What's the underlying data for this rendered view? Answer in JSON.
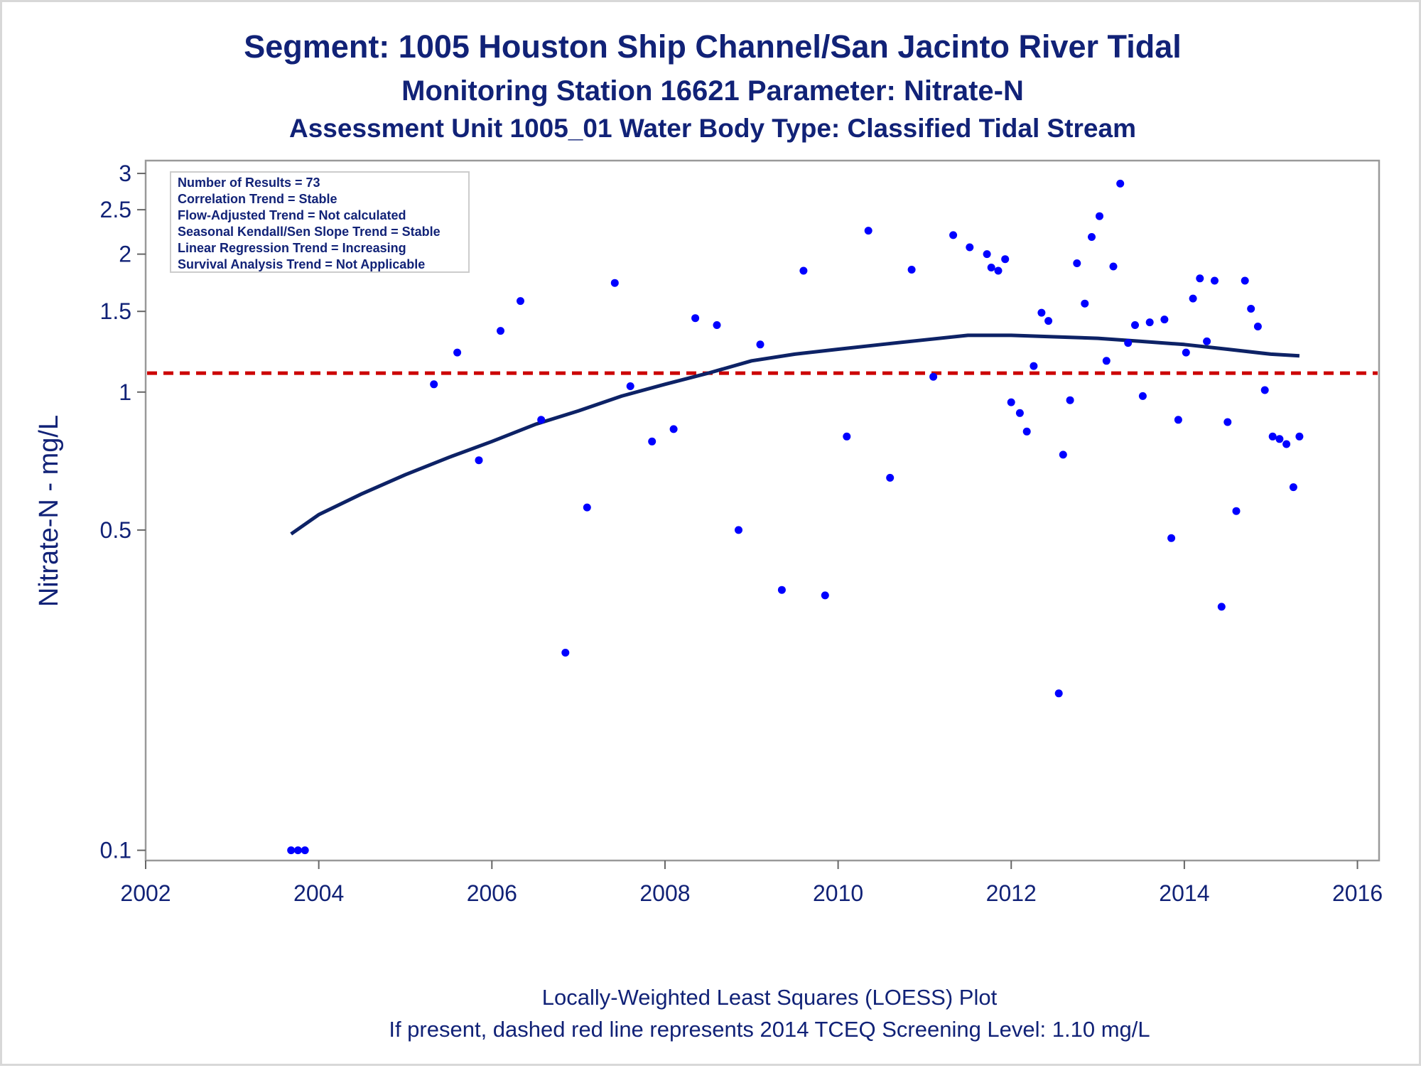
{
  "chart_data": {
    "type": "scatter",
    "title": "Segment: 1005  Houston Ship Channel/San Jacinto River Tidal",
    "subtitle": "Monitoring Station 16621 Parameter: Nitrate-N",
    "subtitle2": "Assessment Unit 1005_01   Water Body Type: Classified Tidal Stream",
    "ylabel": "Nitrate-N - mg/L",
    "xlabel": "",
    "yscale": "log",
    "ylim": [
      0.095,
      3.2
    ],
    "xlim": [
      2002,
      2016.25
    ],
    "x_ticks": [
      2002,
      2004,
      2006,
      2008,
      2010,
      2012,
      2014,
      2016
    ],
    "x_tick_labels": [
      "2002",
      "2004",
      "2006",
      "2008",
      "2010",
      "2012",
      "2014",
      "2016"
    ],
    "y_ticks": [
      0.1,
      0.5,
      1,
      1.5,
      2,
      2.5,
      3
    ],
    "y_tick_labels": [
      "0.1",
      "0.5",
      "1",
      "1.5",
      "2",
      "2.5",
      "3"
    ],
    "grid": false,
    "legend_placement": "top-left",
    "stats_box": [
      "Number of Results = 73",
      "Correlation Trend = Stable",
      "Flow-Adjusted Trend = Not calculated",
      "Seasonal Kendall/Sen Slope Trend = Stable",
      "Linear Regression Trend = Increasing",
      "Survival Analysis Trend = Not Applicable"
    ],
    "screening_level": 1.1,
    "points": [
      [
        2003.68,
        0.1
      ],
      [
        2003.76,
        0.1
      ],
      [
        2003.84,
        0.1
      ],
      [
        2005.33,
        1.04
      ],
      [
        2005.6,
        1.22
      ],
      [
        2005.85,
        0.71
      ],
      [
        2006.1,
        1.36
      ],
      [
        2006.33,
        1.58
      ],
      [
        2006.57,
        0.87
      ],
      [
        2006.85,
        0.27
      ],
      [
        2007.1,
        0.56
      ],
      [
        2007.42,
        1.73
      ],
      [
        2007.6,
        1.03
      ],
      [
        2007.85,
        0.78
      ],
      [
        2008.1,
        0.83
      ],
      [
        2008.35,
        1.45
      ],
      [
        2008.6,
        1.4
      ],
      [
        2008.85,
        0.5
      ],
      [
        2009.1,
        1.27
      ],
      [
        2009.35,
        0.37
      ],
      [
        2009.6,
        1.84
      ],
      [
        2009.85,
        0.36
      ],
      [
        2010.1,
        0.8
      ],
      [
        2010.35,
        2.25
      ],
      [
        2010.6,
        0.65
      ],
      [
        2010.85,
        1.85
      ],
      [
        2011.1,
        1.08
      ],
      [
        2011.33,
        2.2
      ],
      [
        2011.52,
        2.07
      ],
      [
        2011.72,
        2.0
      ],
      [
        2011.77,
        1.87
      ],
      [
        2011.85,
        1.84
      ],
      [
        2011.93,
        1.95
      ],
      [
        2012.0,
        0.95
      ],
      [
        2012.1,
        0.9
      ],
      [
        2012.18,
        0.82
      ],
      [
        2012.26,
        1.14
      ],
      [
        2012.35,
        1.49
      ],
      [
        2012.43,
        1.43
      ],
      [
        2012.55,
        0.22
      ],
      [
        2012.6,
        0.73
      ],
      [
        2012.68,
        0.96
      ],
      [
        2012.76,
        1.91
      ],
      [
        2012.85,
        1.56
      ],
      [
        2012.93,
        2.18
      ],
      [
        2013.02,
        2.42
      ],
      [
        2013.1,
        1.17
      ],
      [
        2013.18,
        1.88
      ],
      [
        2013.26,
        2.85
      ],
      [
        2013.35,
        1.28
      ],
      [
        2013.43,
        1.4
      ],
      [
        2013.52,
        0.98
      ],
      [
        2013.6,
        1.42
      ],
      [
        2013.77,
        1.44
      ],
      [
        2013.85,
        0.48
      ],
      [
        2013.93,
        0.87
      ],
      [
        2014.02,
        1.22
      ],
      [
        2014.1,
        1.6
      ],
      [
        2014.18,
        1.77
      ],
      [
        2014.26,
        1.29
      ],
      [
        2014.35,
        1.75
      ],
      [
        2014.43,
        0.34
      ],
      [
        2014.5,
        0.86
      ],
      [
        2014.6,
        0.55
      ],
      [
        2014.7,
        1.75
      ],
      [
        2014.77,
        1.52
      ],
      [
        2014.85,
        1.39
      ],
      [
        2014.93,
        1.01
      ],
      [
        2015.02,
        0.8
      ],
      [
        2015.1,
        0.79
      ],
      [
        2015.18,
        0.77
      ],
      [
        2015.26,
        0.62
      ],
      [
        2015.33,
        0.8
      ]
    ],
    "loess_curve": [
      [
        2003.68,
        0.49
      ],
      [
        2004.0,
        0.54
      ],
      [
        2004.5,
        0.6
      ],
      [
        2005.0,
        0.66
      ],
      [
        2005.5,
        0.72
      ],
      [
        2006.0,
        0.78
      ],
      [
        2006.5,
        0.85
      ],
      [
        2007.0,
        0.91
      ],
      [
        2007.5,
        0.98
      ],
      [
        2008.0,
        1.04
      ],
      [
        2008.5,
        1.1
      ],
      [
        2009.0,
        1.17
      ],
      [
        2009.5,
        1.21
      ],
      [
        2010.0,
        1.24
      ],
      [
        2010.5,
        1.27
      ],
      [
        2011.0,
        1.3
      ],
      [
        2011.5,
        1.33
      ],
      [
        2012.0,
        1.33
      ],
      [
        2012.5,
        1.32
      ],
      [
        2013.0,
        1.31
      ],
      [
        2013.5,
        1.29
      ],
      [
        2014.0,
        1.27
      ],
      [
        2014.5,
        1.24
      ],
      [
        2015.0,
        1.21
      ],
      [
        2015.33,
        1.2
      ]
    ],
    "footnotes": [
      "Locally-Weighted Least Squares (LOESS) Plot",
      "If present, dashed red line represents 2014 TCEQ Screening Level: 1.10 mg/L"
    ],
    "colors": {
      "text": "#112277",
      "points": "#0000ff",
      "loess": "#0d2266",
      "screening": "#cc0000",
      "frame": "#999999"
    }
  }
}
